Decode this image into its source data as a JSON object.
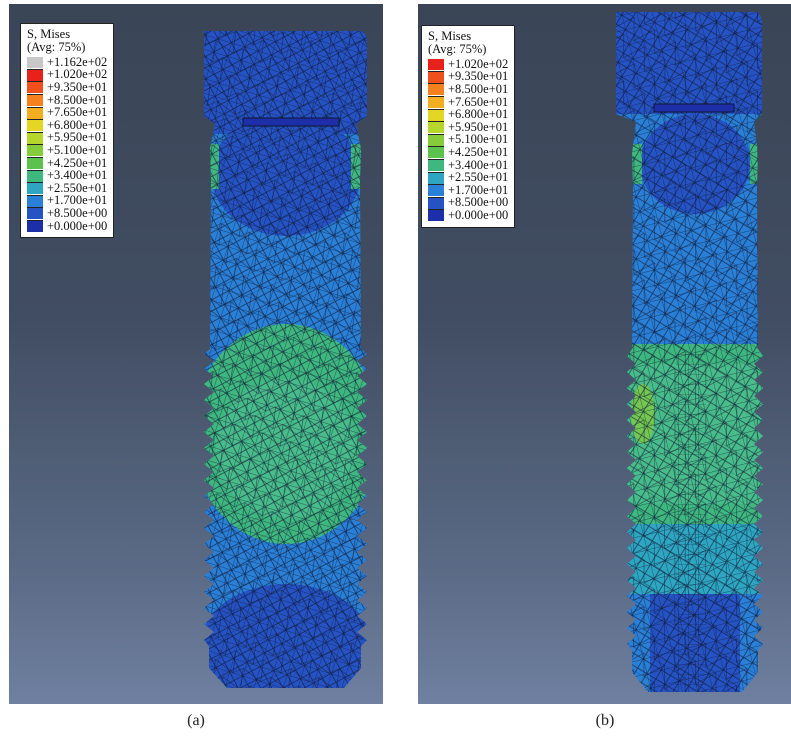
{
  "panels": [
    {
      "id": "a",
      "caption": "(a)",
      "legend": {
        "title": "S, Mises",
        "subtitle": "(Avg: 75%)",
        "entries": [
          {
            "label": "+1.162e+02",
            "color": "#c8c8c8"
          },
          {
            "label": "+1.020e+02",
            "color": "#e8221b"
          },
          {
            "label": "+9.350e+01",
            "color": "#f0501c"
          },
          {
            "label": "+8.500e+01",
            "color": "#f4801e"
          },
          {
            "label": "+7.650e+01",
            "color": "#f3ad21"
          },
          {
            "label": "+6.800e+01",
            "color": "#e3d624"
          },
          {
            "label": "+5.950e+01",
            "color": "#b6d62c"
          },
          {
            "label": "+5.100e+01",
            "color": "#86cc3a"
          },
          {
            "label": "+4.250e+01",
            "color": "#5cc24e"
          },
          {
            "label": "+3.400e+01",
            "color": "#3fb880"
          },
          {
            "label": "+2.550e+01",
            "color": "#2ea6c2"
          },
          {
            "label": "+1.700e+01",
            "color": "#2a7fd6"
          },
          {
            "label": "+8.500e+00",
            "color": "#2653c4"
          },
          {
            "label": "+0.000e+00",
            "color": "#1d2fa8"
          }
        ]
      }
    },
    {
      "id": "b",
      "caption": "(b)",
      "legend": {
        "title": "S, Mises",
        "subtitle": "(Avg: 75%)",
        "entries": [
          {
            "label": "+1.020e+02",
            "color": "#e8221b"
          },
          {
            "label": "+9.350e+01",
            "color": "#f0501c"
          },
          {
            "label": "+8.500e+01",
            "color": "#f4801e"
          },
          {
            "label": "+7.650e+01",
            "color": "#f3ad21"
          },
          {
            "label": "+6.800e+01",
            "color": "#e3d624"
          },
          {
            "label": "+5.950e+01",
            "color": "#b6d62c"
          },
          {
            "label": "+5.100e+01",
            "color": "#86cc3a"
          },
          {
            "label": "+4.250e+01",
            "color": "#5cc24e"
          },
          {
            "label": "+3.400e+01",
            "color": "#3fb880"
          },
          {
            "label": "+2.550e+01",
            "color": "#2ea6c2"
          },
          {
            "label": "+1.700e+01",
            "color": "#2a7fd6"
          },
          {
            "label": "+8.500e+00",
            "color": "#2653c4"
          },
          {
            "label": "+0.000e+00",
            "color": "#1d2fa8"
          }
        ]
      }
    }
  ]
}
